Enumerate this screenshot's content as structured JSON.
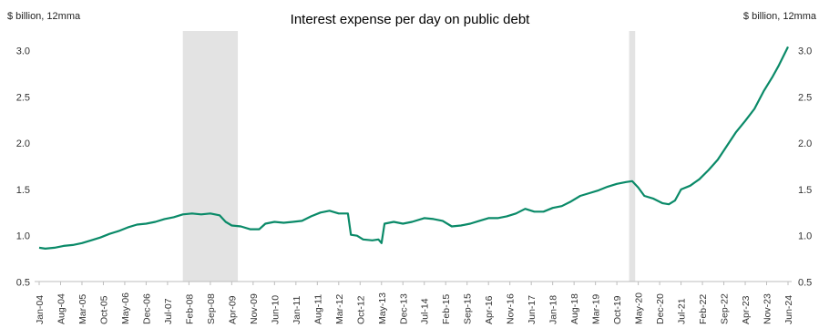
{
  "chart_data": {
    "type": "line",
    "title": "Interest expense per day on public debt",
    "ylabel_left": "$ billion, 12mma",
    "ylabel_right": "$ billion, 12mma",
    "ylim": [
      0.5,
      3.0
    ],
    "yticks": [
      "0.5",
      "1.0",
      "1.5",
      "2.0",
      "2.5",
      "3.0"
    ],
    "yticks_right": [
      "0.5",
      "1.0",
      "1.5",
      "2.0",
      "2.5",
      "3.0"
    ],
    "grid": false,
    "line_color": "#0a8a68",
    "recession_color": "#e3e3e3",
    "xticks": [
      "Jan-04",
      "Aug-04",
      "Mar-05",
      "Oct-05",
      "May-06",
      "Dec-06",
      "Jul-07",
      "Feb-08",
      "Sep-08",
      "Apr-09",
      "Nov-09",
      "Jun-10",
      "Jan-11",
      "Aug-11",
      "Mar-12",
      "Oct-12",
      "May-13",
      "Dec-13",
      "Jul-14",
      "Feb-15",
      "Sep-15",
      "Apr-16",
      "Nov-16",
      "Jun-17",
      "Jan-18",
      "Aug-18",
      "Mar-19",
      "Oct-19",
      "May-20",
      "Dec-20",
      "Jul-21",
      "Feb-22",
      "Sep-22",
      "Apr-23",
      "Nov-23",
      "Jun-24"
    ],
    "recessions": [
      [
        "2007-12",
        "2009-06"
      ],
      [
        "2020-02",
        "2020-04"
      ]
    ],
    "series": [
      {
        "points": [
          [
            "2004-01",
            0.87
          ],
          [
            "2004-03",
            0.86
          ],
          [
            "2004-06",
            0.87
          ],
          [
            "2004-09",
            0.89
          ],
          [
            "2004-12",
            0.9
          ],
          [
            "2005-03",
            0.92
          ],
          [
            "2005-06",
            0.95
          ],
          [
            "2005-09",
            0.98
          ],
          [
            "2005-12",
            1.02
          ],
          [
            "2006-03",
            1.05
          ],
          [
            "2006-06",
            1.09
          ],
          [
            "2006-09",
            1.12
          ],
          [
            "2006-12",
            1.13
          ],
          [
            "2007-03",
            1.15
          ],
          [
            "2007-06",
            1.18
          ],
          [
            "2007-09",
            1.2
          ],
          [
            "2007-12",
            1.23
          ],
          [
            "2008-03",
            1.24
          ],
          [
            "2008-06",
            1.23
          ],
          [
            "2008-09",
            1.24
          ],
          [
            "2008-12",
            1.22
          ],
          [
            "2009-02",
            1.15
          ],
          [
            "2009-04",
            1.11
          ],
          [
            "2009-07",
            1.1
          ],
          [
            "2009-10",
            1.07
          ],
          [
            "2010-01",
            1.07
          ],
          [
            "2010-03",
            1.13
          ],
          [
            "2010-06",
            1.15
          ],
          [
            "2010-09",
            1.14
          ],
          [
            "2010-12",
            1.15
          ],
          [
            "2011-03",
            1.16
          ],
          [
            "2011-06",
            1.21
          ],
          [
            "2011-09",
            1.25
          ],
          [
            "2011-12",
            1.27
          ],
          [
            "2012-03",
            1.24
          ],
          [
            "2012-06",
            1.24
          ],
          [
            "2012-07",
            1.01
          ],
          [
            "2012-09",
            1.0
          ],
          [
            "2012-11",
            0.96
          ],
          [
            "2013-02",
            0.95
          ],
          [
            "2013-04",
            0.96
          ],
          [
            "2013-05",
            0.92
          ],
          [
            "2013-06",
            1.13
          ],
          [
            "2013-09",
            1.15
          ],
          [
            "2013-12",
            1.13
          ],
          [
            "2014-03",
            1.15
          ],
          [
            "2014-07",
            1.19
          ],
          [
            "2014-10",
            1.18
          ],
          [
            "2015-01",
            1.16
          ],
          [
            "2015-04",
            1.1
          ],
          [
            "2015-07",
            1.11
          ],
          [
            "2015-10",
            1.13
          ],
          [
            "2016-01",
            1.16
          ],
          [
            "2016-04",
            1.19
          ],
          [
            "2016-07",
            1.19
          ],
          [
            "2016-10",
            1.21
          ],
          [
            "2017-01",
            1.24
          ],
          [
            "2017-04",
            1.29
          ],
          [
            "2017-07",
            1.26
          ],
          [
            "2017-10",
            1.26
          ],
          [
            "2018-01",
            1.3
          ],
          [
            "2018-04",
            1.32
          ],
          [
            "2018-07",
            1.37
          ],
          [
            "2018-10",
            1.43
          ],
          [
            "2019-01",
            1.46
          ],
          [
            "2019-04",
            1.49
          ],
          [
            "2019-07",
            1.53
          ],
          [
            "2019-10",
            1.56
          ],
          [
            "2020-01",
            1.58
          ],
          [
            "2020-03",
            1.59
          ],
          [
            "2020-05",
            1.52
          ],
          [
            "2020-07",
            1.43
          ],
          [
            "2020-10",
            1.4
          ],
          [
            "2021-01",
            1.35
          ],
          [
            "2021-03",
            1.34
          ],
          [
            "2021-05",
            1.38
          ],
          [
            "2021-07",
            1.5
          ],
          [
            "2021-10",
            1.54
          ],
          [
            "2022-01",
            1.61
          ],
          [
            "2022-04",
            1.71
          ],
          [
            "2022-07",
            1.82
          ],
          [
            "2022-10",
            1.97
          ],
          [
            "2023-01",
            2.12
          ],
          [
            "2023-04",
            2.24
          ],
          [
            "2023-07",
            2.37
          ],
          [
            "2023-10",
            2.56
          ],
          [
            "2024-01",
            2.72
          ],
          [
            "2024-03",
            2.84
          ],
          [
            "2024-06",
            3.04
          ]
        ]
      }
    ]
  }
}
